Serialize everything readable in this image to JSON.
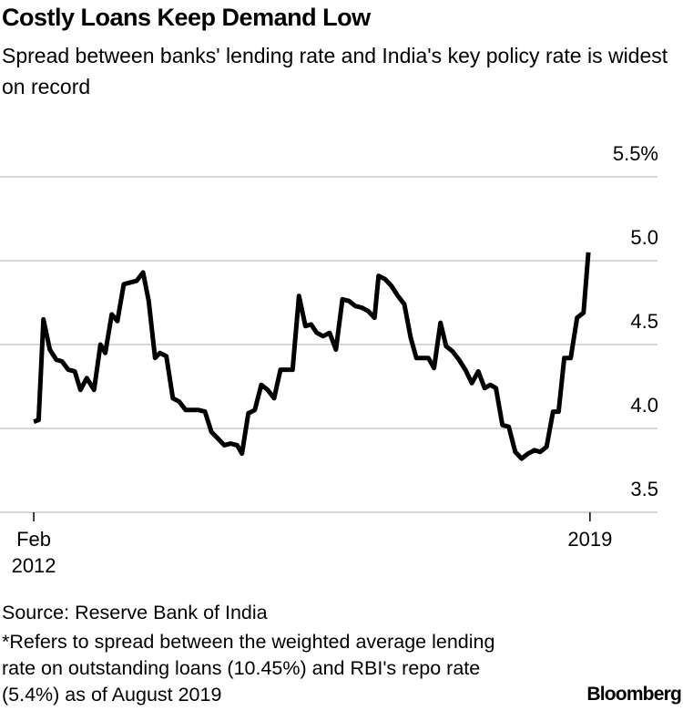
{
  "chart_data": {
    "type": "line",
    "title": "Costly Loans Keep Demand Low",
    "subtitle": "Spread between banks' lending rate and India's key policy rate is widest on record",
    "source": "Source: Reserve Bank of India",
    "note": "*Refers to spread between the weighted average lending rate on outstanding loans (10.45%) and RBI's repo rate (5.4%) as of August 2019",
    "logo": "Bloomberg",
    "xlim": [
      2011.66,
      2019.84
    ],
    "xticks": [
      {
        "value": 2012.08,
        "label": "Feb 2012"
      },
      {
        "value": 2019.0,
        "label": "2019"
      }
    ],
    "ylim": [
      3.5,
      5.5
    ],
    "yticks": [
      3.5,
      {
        "value": 4.0,
        "label": "4.0"
      },
      4.5,
      {
        "value": 5.0,
        "label": "5.0"
      },
      {
        "value": 5.5,
        "label": "5.5%"
      }
    ],
    "grid": true,
    "color": "#000000",
    "x": [
      2012.08,
      2012.14,
      2012.2,
      2012.28,
      2012.36,
      2012.43,
      2012.51,
      2012.59,
      2012.66,
      2012.74,
      2012.83,
      2012.91,
      2012.97,
      2013.05,
      2013.12,
      2013.2,
      2013.28,
      2013.36,
      2013.44,
      2013.51,
      2013.59,
      2013.65,
      2013.73,
      2013.81,
      2013.89,
      2013.97,
      2014.05,
      2014.13,
      2014.21,
      2014.29,
      2014.37,
      2014.45,
      2014.53,
      2014.61,
      2014.67,
      2014.75,
      2014.83,
      2014.91,
      2014.99,
      2015.07,
      2015.15,
      2015.23,
      2015.3,
      2015.38,
      2015.46,
      2015.53,
      2015.6,
      2015.68,
      2015.76,
      2015.84,
      2015.92,
      2016.0,
      2016.08,
      2016.16,
      2016.24,
      2016.32,
      2016.37,
      2016.45,
      2016.53,
      2016.61,
      2016.69,
      2016.77,
      2016.84,
      2016.92,
      2016.99,
      2017.06,
      2017.14,
      2017.21,
      2017.29,
      2017.37,
      2017.45,
      2017.53,
      2017.61,
      2017.69,
      2017.76,
      2017.83,
      2017.91,
      2017.99,
      2018.07,
      2018.15,
      2018.23,
      2018.31,
      2018.38,
      2018.46,
      2018.54,
      2018.61,
      2018.68,
      2018.76,
      2018.84,
      2018.92,
      2018.98
    ],
    "values": [
      4.04,
      4.05,
      4.65,
      4.47,
      4.41,
      4.4,
      4.35,
      4.34,
      4.23,
      4.3,
      4.23,
      4.5,
      4.45,
      4.68,
      4.64,
      4.86,
      4.87,
      4.88,
      4.93,
      4.76,
      4.42,
      4.45,
      4.43,
      4.18,
      4.16,
      4.11,
      4.11,
      4.11,
      4.1,
      3.98,
      3.94,
      3.9,
      3.91,
      3.9,
      3.85,
      4.09,
      4.11,
      4.26,
      4.23,
      4.18,
      4.35,
      4.35,
      4.35,
      4.79,
      4.61,
      4.62,
      4.57,
      4.55,
      4.57,
      4.47,
      4.77,
      4.76,
      4.73,
      4.72,
      4.7,
      4.66,
      4.91,
      4.89,
      4.85,
      4.79,
      4.74,
      4.54,
      4.42,
      4.42,
      4.42,
      4.36,
      4.63,
      4.49,
      4.46,
      4.41,
      4.35,
      4.27,
      4.34,
      4.24,
      4.26,
      4.24,
      4.02,
      4.01,
      3.86,
      3.82,
      3.85,
      3.87,
      3.86,
      3.89,
      4.1,
      4.1,
      4.42,
      4.42,
      4.66,
      4.69,
      5.05
    ]
  }
}
